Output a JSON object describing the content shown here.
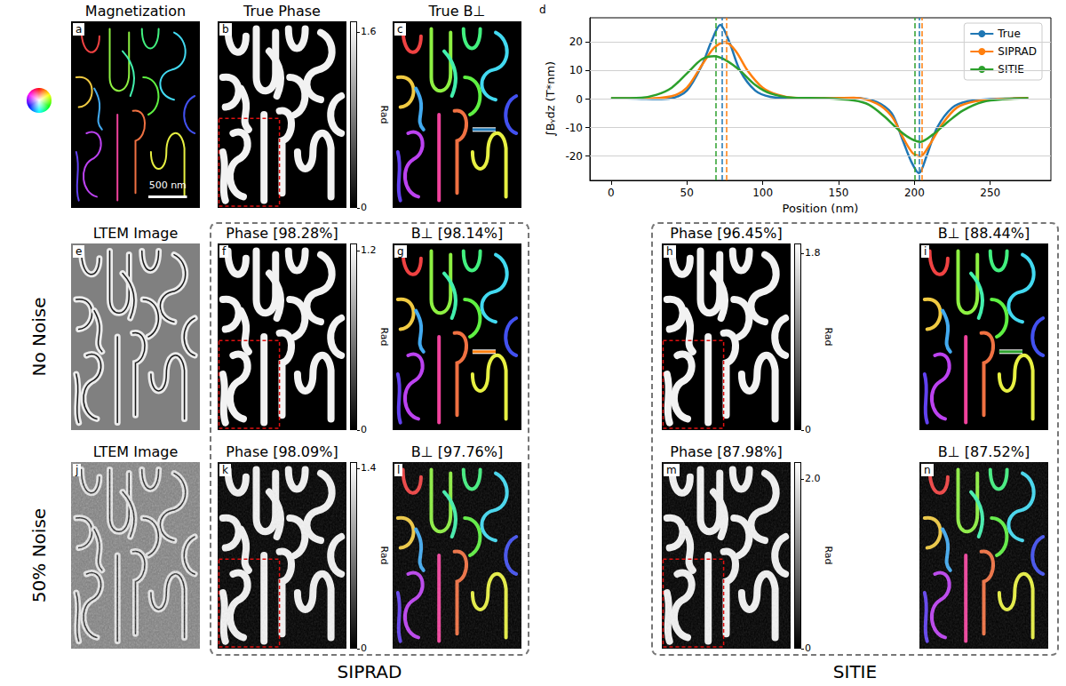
{
  "figure": {
    "rows": [
      {
        "panels": [
          {
            "letter": "a",
            "title": "Magnetization",
            "type": "magnetization",
            "scale_bar": "500 nm"
          },
          {
            "letter": "b",
            "title": "True Phase",
            "type": "phase",
            "colorbar": {
              "range": [
                0,
                1.7
              ],
              "ticks": [
                0,
                1.6
              ],
              "label": "Rad"
            }
          },
          {
            "letter": "c",
            "title": "True B⊥",
            "type": "field",
            "profile": "True"
          }
        ]
      },
      {
        "label": "No Noise",
        "panels": [
          {
            "letter": "e",
            "title": "LTEM Image",
            "type": "ltem"
          },
          {
            "letter": "f",
            "title": "Phase [98.28%]",
            "type": "phase",
            "colorbar": {
              "range": [
                0,
                1.25
              ],
              "ticks": [
                0,
                1.2
              ],
              "label": "Rad"
            }
          },
          {
            "letter": "g",
            "title": "B⊥ [98.14%]",
            "type": "field",
            "profile": "SIPRAD"
          },
          {
            "letter": "h",
            "title": "Phase [96.45%]",
            "type": "phase",
            "colorbar": {
              "range": [
                0,
                1.9
              ],
              "ticks": [
                0,
                1.8
              ],
              "label": "Rad"
            }
          },
          {
            "letter": "i",
            "title": "B⊥ [88.44%]",
            "type": "field",
            "profile": "SITIE"
          }
        ]
      },
      {
        "label": "50% Noise",
        "panels": [
          {
            "letter": "j",
            "title": "LTEM Image",
            "type": "ltem"
          },
          {
            "letter": "k",
            "title": "Phase [98.09%]",
            "type": "phase",
            "colorbar": {
              "range": [
                0,
                1.45
              ],
              "ticks": [
                0,
                1.4
              ],
              "label": "Rad"
            }
          },
          {
            "letter": "l",
            "title": "B⊥ [97.76%]",
            "type": "field"
          },
          {
            "letter": "m",
            "title": "Phase [87.98%]",
            "type": "phase",
            "colorbar": {
              "range": [
                0,
                2.2
              ],
              "ticks": [
                0,
                {
                  "value": 2,
                  "label": "2.0"
                }
              ],
              "label": "Rad"
            }
          },
          {
            "letter": "n",
            "title": "B⊥ [87.52%]",
            "type": "field"
          }
        ]
      }
    ],
    "groups": [
      "SIPRAD",
      "SITIE"
    ]
  },
  "chart_data": {
    "letter": "d",
    "type": "line",
    "x_label": "Position (nm)",
    "y_label": "∫Bᵧdz (T*nm)",
    "xlim": [
      -14,
      290
    ],
    "xticks": [
      0,
      50,
      100,
      150,
      200,
      250
    ],
    "ylim": [
      -28.5,
      28.5
    ],
    "yticks": [
      -20,
      -10,
      0,
      10,
      20
    ],
    "grid": true,
    "legend": "upper right",
    "series": [
      {
        "name": "True",
        "color": "#1f77b4",
        "marker": "none",
        "line_style": "solid",
        "x": [
          0,
          10,
          20,
          30,
          40,
          50,
          60,
          66,
          72,
          78,
          85,
          95,
          105,
          120,
          140,
          160,
          175,
          185,
          192,
          198,
          203,
          208,
          215,
          225,
          235,
          250,
          265,
          275
        ],
        "values": [
          0.2,
          0.2,
          0.1,
          0,
          0.3,
          3,
          12,
          20,
          26,
          20,
          10,
          3,
          0.8,
          0.3,
          0.2,
          0.4,
          -1,
          -5,
          -14,
          -22,
          -26,
          -20,
          -10,
          -3,
          -0.8,
          0,
          0.2,
          0.4
        ],
        "peak_positions": [
          73,
          203
        ]
      },
      {
        "name": "SIPRAD",
        "color": "#ff7f0e",
        "marker": "none",
        "line_style": "solid",
        "x": [
          0,
          20,
          40,
          50,
          60,
          68,
          75,
          82,
          90,
          100,
          110,
          120,
          140,
          160,
          175,
          185,
          193,
          199,
          204,
          210,
          218,
          228,
          240,
          255,
          275
        ],
        "values": [
          0.2,
          0.2,
          1,
          4,
          12,
          18,
          20,
          17,
          10,
          4,
          1.5,
          0.5,
          0.3,
          0.5,
          -1.5,
          -6,
          -14,
          -19,
          -20,
          -16,
          -9,
          -3,
          -0.8,
          0,
          0.4
        ],
        "peak_positions": [
          76,
          205
        ]
      },
      {
        "name": "SITIE",
        "color": "#2ca02c",
        "marker": "none",
        "line_style": "solid",
        "x": [
          0,
          20,
          30,
          40,
          50,
          60,
          68,
          76,
          85,
          95,
          105,
          120,
          140,
          160,
          170,
          180,
          190,
          198,
          204,
          212,
          222,
          232,
          245,
          260,
          275
        ],
        "values": [
          0.3,
          0.5,
          1.5,
          4,
          9,
          14,
          15,
          13.5,
          10,
          5,
          2,
          0.5,
          0.3,
          -0.5,
          -2,
          -6,
          -11,
          -14,
          -15,
          -12.5,
          -8,
          -4,
          -1,
          0,
          0.3
        ],
        "peak_positions": [
          69,
          200
        ]
      }
    ]
  }
}
